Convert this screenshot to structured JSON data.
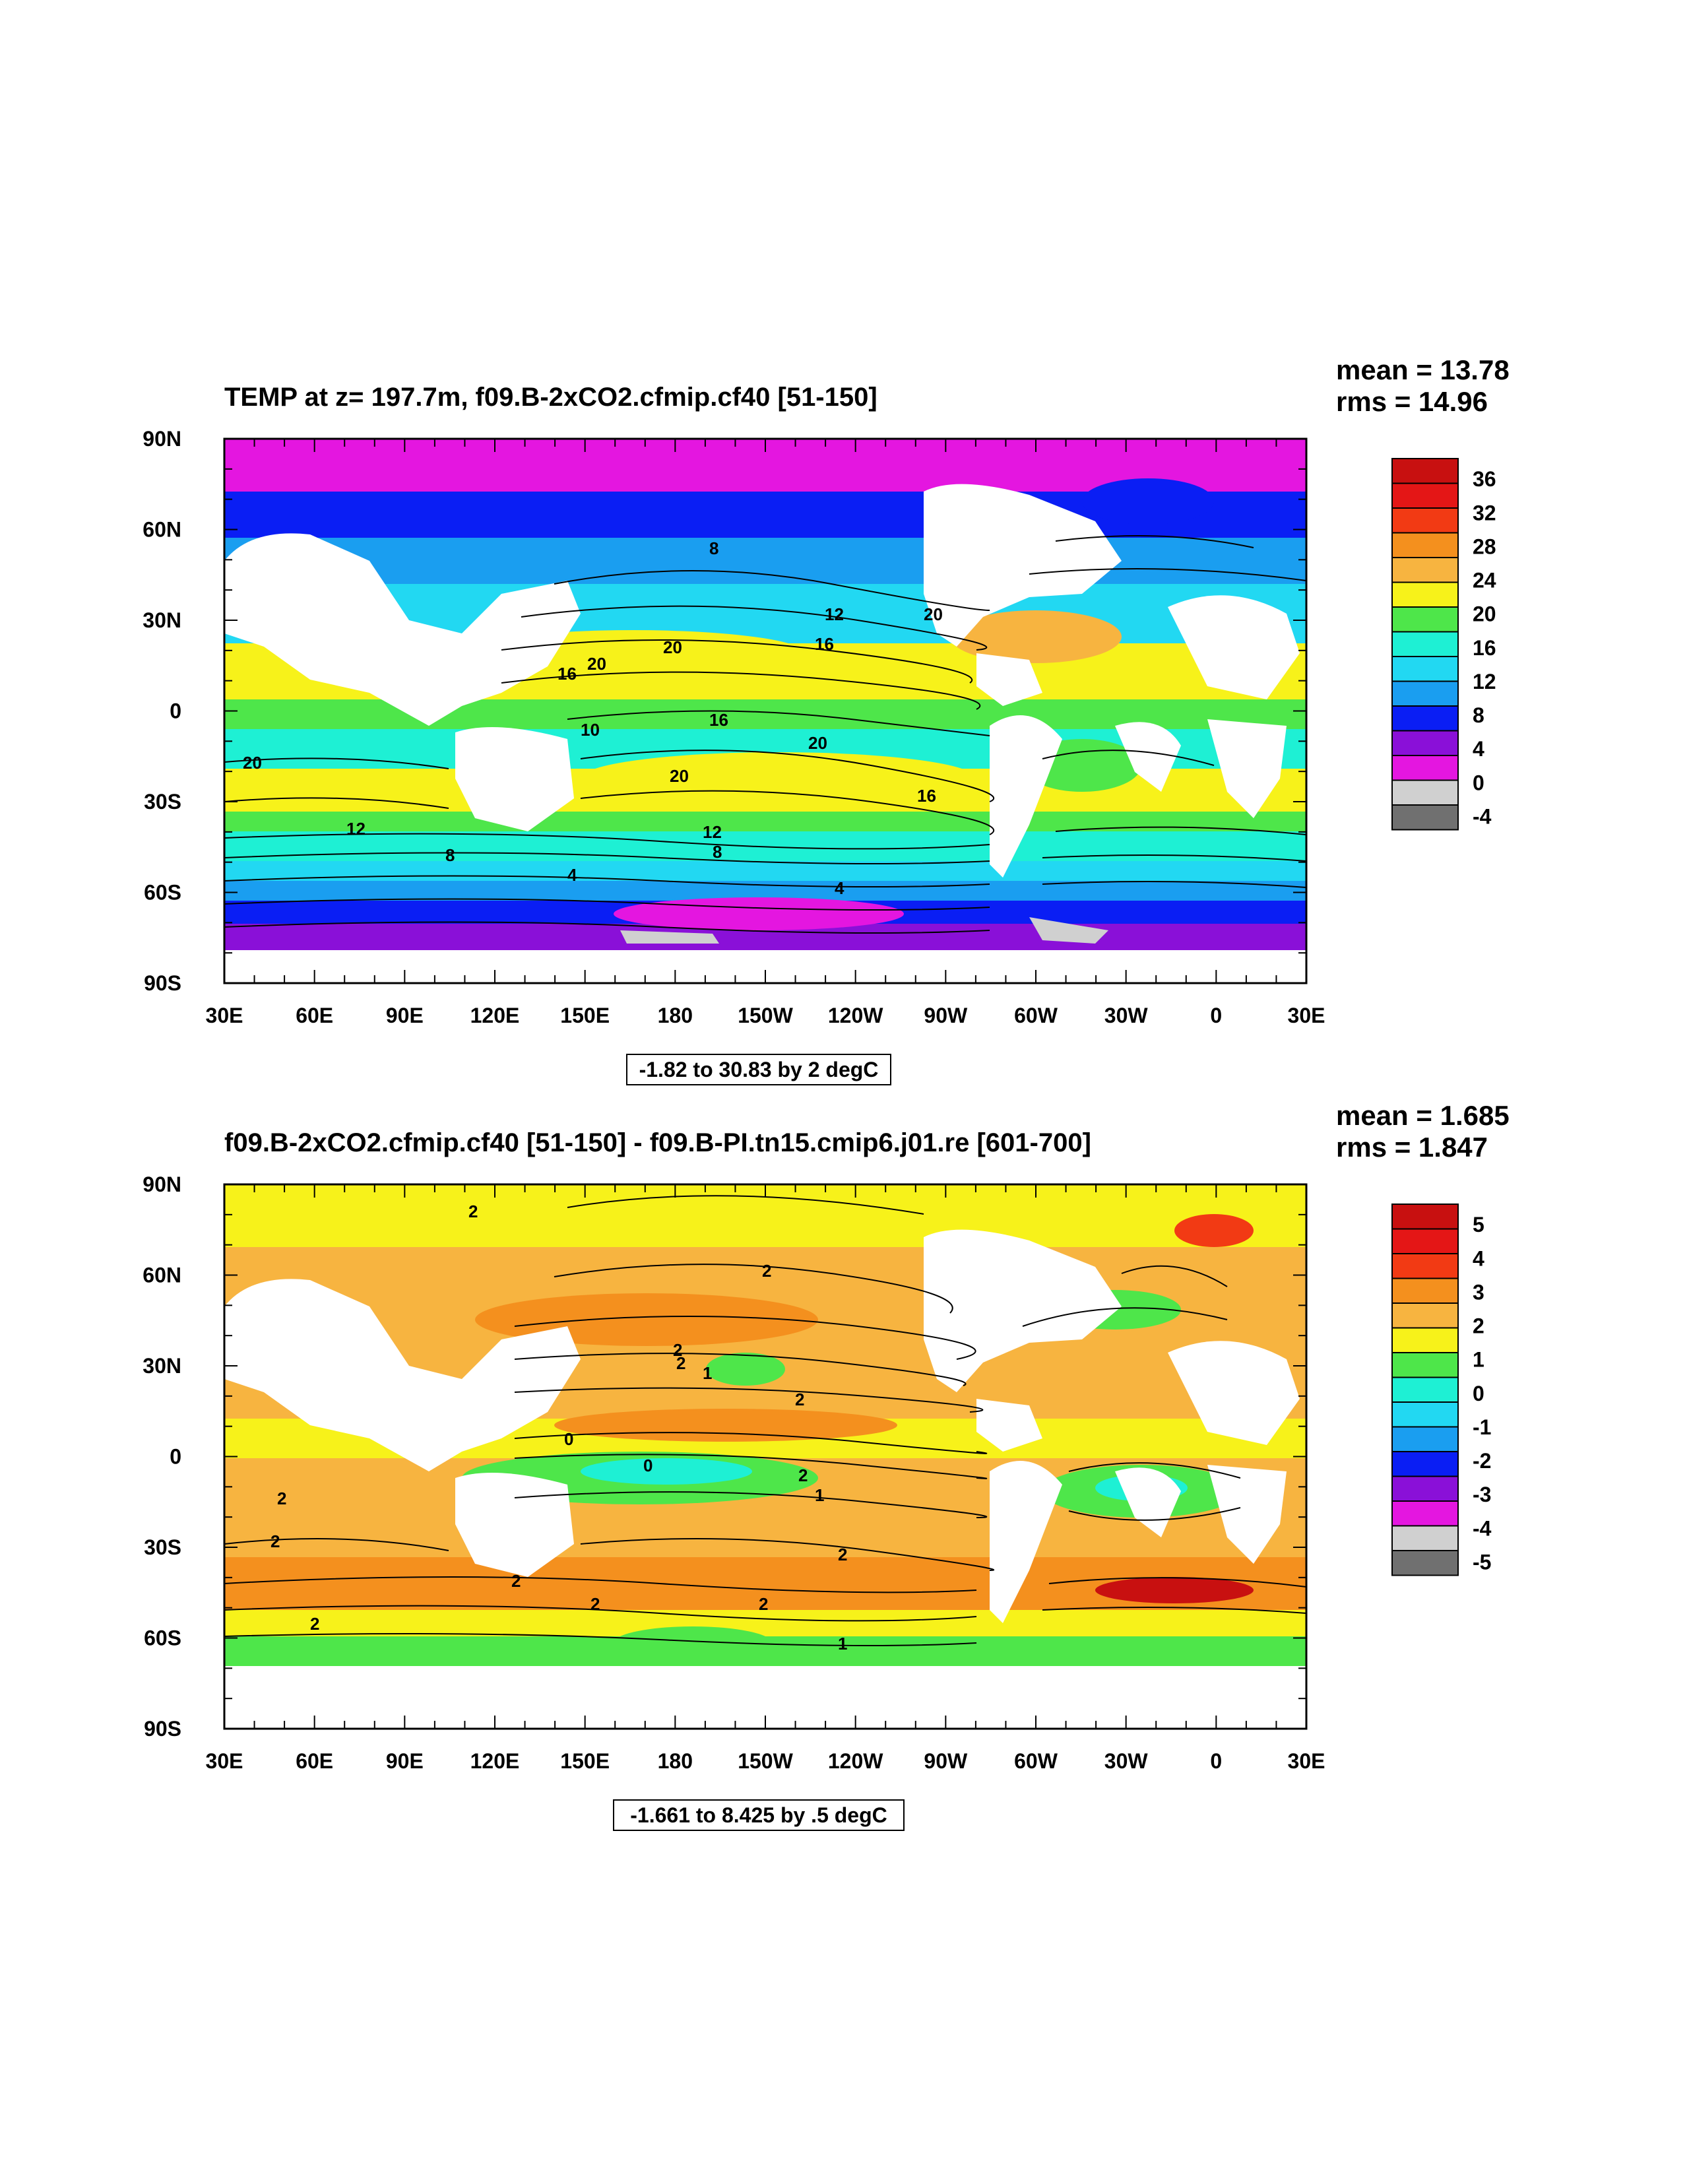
{
  "panels": [
    {
      "id": "top",
      "title": "TEMP at z= 197.7m, f09.B-2xCO2.cfmip.cf40 [51-150]",
      "stats": {
        "mean": "mean = 13.78",
        "rms": "rms = 14.96"
      },
      "range_label": "-1.82 to 30.83 by 2 degC",
      "colorbar": {
        "labels": [
          "36",
          "32",
          "28",
          "24",
          "20",
          "16",
          "12",
          "8",
          "4",
          "0",
          "-4"
        ],
        "colors": [
          "#c81010",
          "#e41616",
          "#f23a14",
          "#f4901e",
          "#f7b440",
          "#f7f21a",
          "#4ee64a",
          "#1ef0d4",
          "#22d8f2",
          "#1a9ef0",
          "#0a1ef4",
          "#8a10d8",
          "#e416e0",
          "#d0d0d0",
          "#707070"
        ]
      },
      "contour_labels": [
        "8",
        "12",
        "16",
        "20",
        "20",
        "16",
        "16",
        "20",
        "20",
        "12",
        "12",
        "8",
        "8",
        "4",
        "4",
        "16",
        "10",
        "20",
        "20"
      ]
    },
    {
      "id": "bottom",
      "title": "f09.B-2xCO2.cfmip.cf40 [51-150] - f09.B-PI.tn15.cmip6.j01.re [601-700]",
      "stats": {
        "mean": "mean = 1.685",
        "rms": "rms = 1.847"
      },
      "range_label": "-1.661 to 8.425 by .5 degC",
      "colorbar": {
        "labels": [
          "5",
          "4",
          "3",
          "2",
          "1",
          "0",
          "-1",
          "-2",
          "-3",
          "-4",
          "-5"
        ],
        "colors": [
          "#c81010",
          "#e41616",
          "#f23a14",
          "#f4901e",
          "#f7b440",
          "#f7f21a",
          "#4ee64a",
          "#1ef0d4",
          "#22d8f2",
          "#1a9ef0",
          "#0a1ef4",
          "#8a10d8",
          "#e416e0",
          "#d0d0d0",
          "#707070"
        ]
      },
      "contour_labels": [
        "2",
        "2",
        "2",
        "1",
        "2",
        "0",
        "0",
        "2",
        "1",
        "2",
        "2",
        "2",
        "2",
        "2",
        "2",
        "2",
        "1",
        "2"
      ]
    }
  ],
  "axes": {
    "lon_labels": [
      "30E",
      "60E",
      "90E",
      "120E",
      "150E",
      "180",
      "150W",
      "120W",
      "90W",
      "60W",
      "30W",
      "0",
      "30E"
    ],
    "lat_labels": [
      "90N",
      "60N",
      "30N",
      "0",
      "30S",
      "60S",
      "90S"
    ]
  }
}
